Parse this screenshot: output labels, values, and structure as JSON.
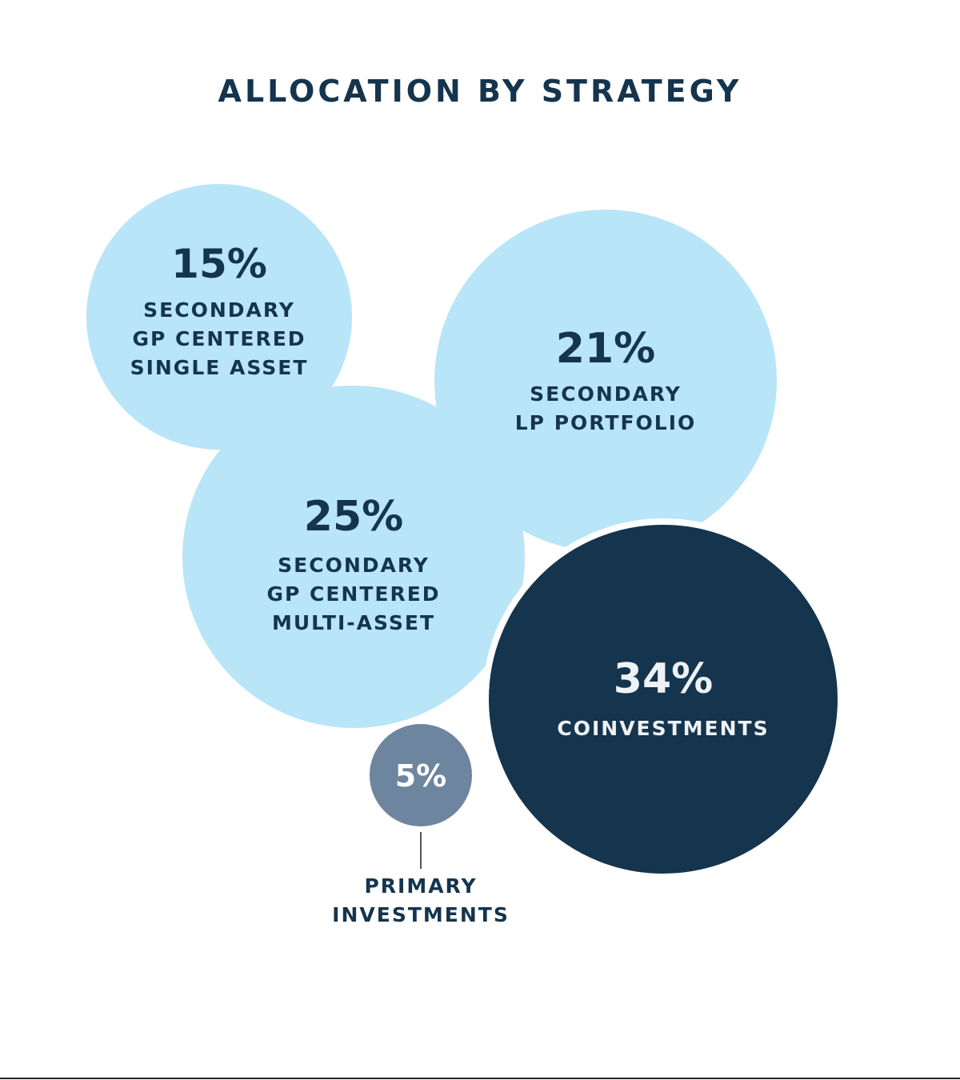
{
  "chart_data": {
    "type": "bubble",
    "title": "ALLOCATION BY STRATEGY",
    "unit": "%",
    "series": [
      {
        "label_lines": [
          "SECONDARY",
          "GP CENTERED",
          "SINGLE ASSET"
        ],
        "value": 15,
        "value_label": "15%",
        "color": "#b8e5f8",
        "text_color": "#15344d"
      },
      {
        "label_lines": [
          "SECONDARY",
          "LP PORTFOLIO"
        ],
        "value": 21,
        "value_label": "21%",
        "color": "#b8e5f8",
        "text_color": "#15344d"
      },
      {
        "label_lines": [
          "SECONDARY",
          "GP CENTERED",
          "MULTI-ASSET"
        ],
        "value": 25,
        "value_label": "25%",
        "color": "#b8e5f8",
        "text_color": "#15344d"
      },
      {
        "label_lines": [
          "COINVESTMENTS"
        ],
        "value": 34,
        "value_label": "34%",
        "color": "#15344d",
        "text_color": "#eef2f5"
      },
      {
        "label_lines": [
          "PRIMARY",
          "INVESTMENTS"
        ],
        "value": 5,
        "value_label": "5%",
        "color": "#6e85a0",
        "text_color": "#ffffff",
        "label_color": "#15344d"
      }
    ]
  }
}
